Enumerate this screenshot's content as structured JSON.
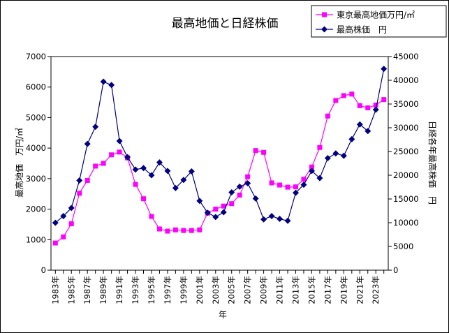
{
  "chart_data": {
    "type": "line",
    "title": "最高地価と日経株価",
    "xlabel": "年",
    "ylabel_left": "最高地価　万円/㎡",
    "ylabel_right": "日経各年最高株価　円",
    "x": [
      1983,
      1984,
      1985,
      1986,
      1987,
      1988,
      1989,
      1990,
      1991,
      1992,
      1993,
      1994,
      1995,
      1996,
      1997,
      1998,
      1999,
      2000,
      2001,
      2002,
      2003,
      2004,
      2005,
      2006,
      2007,
      2008,
      2009,
      2010,
      2011,
      2012,
      2013,
      2014,
      2015,
      2016,
      2017,
      2018,
      2019,
      2020,
      2021,
      2022,
      2023,
      2024
    ],
    "x_tick_labels": [
      "1983年",
      "1985年",
      "1987年",
      "1989年",
      "1991年",
      "1993年",
      "1995年",
      "1997年",
      "1999年",
      "2001年",
      "2003年",
      "2005年",
      "2007年",
      "2009年",
      "2011年",
      "2013年",
      "2015年",
      "2017年",
      "2019年",
      "2021年",
      "2023年"
    ],
    "ylim_left": [
      0,
      7000
    ],
    "ylim_right": [
      0,
      45000
    ],
    "y_ticks_left": [
      "0",
      "1000",
      "2000",
      "3000",
      "4000",
      "5000",
      "6000",
      "7000"
    ],
    "y_ticks_right": [
      "0",
      "5000",
      "10000",
      "15000",
      "20000",
      "25000",
      "30000",
      "35000",
      "40000",
      "45000"
    ],
    "series": [
      {
        "name": "東京最高地価万円/㎡",
        "axis": "left",
        "color": "#ff00ff",
        "marker": "square",
        "values": [
          890,
          1090,
          1520,
          2520,
          2940,
          3410,
          3500,
          3780,
          3870,
          3680,
          2810,
          2340,
          1760,
          1350,
          1280,
          1320,
          1300,
          1300,
          1320,
          1870,
          2000,
          2100,
          2180,
          2460,
          3060,
          3920,
          3860,
          2860,
          2790,
          2720,
          2730,
          2980,
          3380,
          4020,
          5050,
          5560,
          5720,
          5770,
          5390,
          5320,
          5410,
          5590
        ]
      },
      {
        "name": "最高株価　円",
        "axis": "right",
        "color": "#000080",
        "marker": "diamond",
        "values": [
          9990,
          11400,
          13100,
          18900,
          26600,
          30200,
          39700,
          39000,
          27200,
          23800,
          21200,
          21500,
          20000,
          22700,
          20900,
          17300,
          19000,
          20800,
          14600,
          12100,
          11200,
          12200,
          16400,
          17600,
          18300,
          15100,
          10700,
          11400,
          10800,
          10400,
          16300,
          18000,
          20900,
          19400,
          23600,
          24600,
          24100,
          27600,
          30700,
          29300,
          33800,
          42400
        ]
      }
    ],
    "legend_position": "top-right",
    "grid": false
  }
}
